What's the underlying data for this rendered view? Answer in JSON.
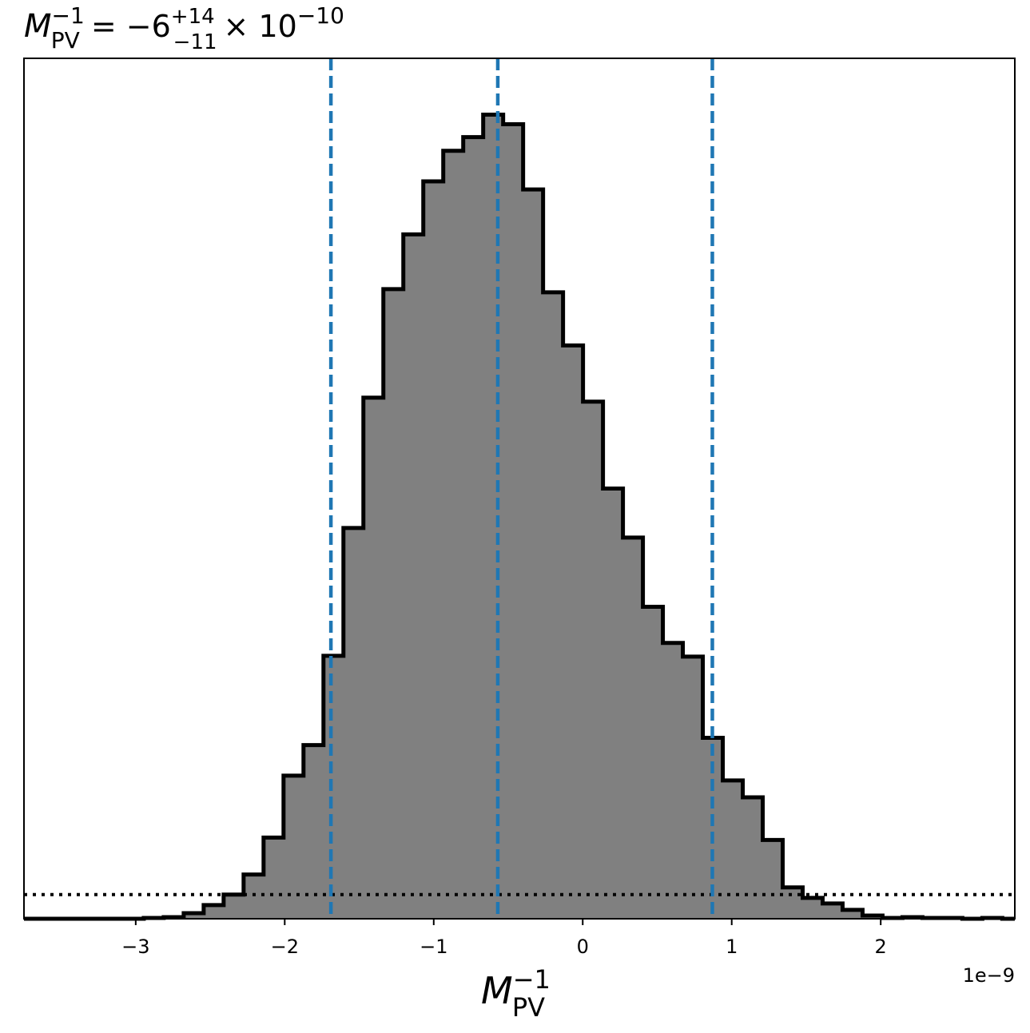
{
  "chart_data": {
    "type": "bar",
    "title": {
      "symbol": "M",
      "subscript": "PV",
      "superscript": "−1",
      "equals": "= −6",
      "plus_err": "+14",
      "minus_err": "−11",
      "times": "× 10",
      "exponent": "−10"
    },
    "xlabel": {
      "symbol": "M",
      "subscript": "PV",
      "superscript": "−1"
    },
    "ylabel": "",
    "x_offset_label": "1e−9",
    "xlim": [
      -3.75,
      2.9
    ],
    "ylim": [
      0,
      1.07
    ],
    "x_ticks": [
      -3,
      -2,
      -1,
      0,
      1,
      2
    ],
    "x_tick_labels": [
      "−3",
      "−2",
      "−1",
      "0",
      "1",
      "2"
    ],
    "grid": false,
    "bin_edges": [
      -3.75,
      -3.616,
      -3.482,
      -3.348,
      -3.214,
      -3.08,
      -2.946,
      -2.812,
      -2.678,
      -2.544,
      -2.41,
      -2.276,
      -2.142,
      -2.008,
      -1.874,
      -1.74,
      -1.606,
      -1.472,
      -1.338,
      -1.204,
      -1.07,
      -0.936,
      -0.802,
      -0.668,
      -0.534,
      -0.4,
      -0.266,
      -0.132,
      0.002,
      0.136,
      0.27,
      0.404,
      0.538,
      0.672,
      0.806,
      0.94,
      1.074,
      1.208,
      1.342,
      1.476,
      1.61,
      1.744,
      1.878,
      2.012,
      2.146,
      2.28,
      2.414,
      2.548,
      2.682,
      2.816,
      2.9
    ],
    "counts": [
      0,
      0,
      0,
      0,
      0,
      0,
      0.001,
      0.002,
      0.007,
      0.017,
      0.03,
      0.055,
      0.101,
      0.178,
      0.216,
      0.327,
      0.486,
      0.648,
      0.783,
      0.851,
      0.917,
      0.955,
      0.972,
      1.0,
      0.988,
      0.907,
      0.779,
      0.713,
      0.643,
      0.535,
      0.474,
      0.388,
      0.343,
      0.326,
      0.225,
      0.172,
      0.151,
      0.098,
      0.039,
      0.026,
      0.019,
      0.011,
      0.004,
      0.001,
      0.002,
      0.001,
      0.001,
      0.0,
      0.001,
      0.0
    ],
    "bar_color": "#808080",
    "edge_color": "#000000",
    "vertical_lines": {
      "values": [
        -1.69,
        -0.57,
        0.87
      ],
      "style": "dashed",
      "color": "#1f77b4"
    },
    "horizontal_line": {
      "value": 0.03,
      "style": "dotted",
      "color": "#000000"
    }
  }
}
